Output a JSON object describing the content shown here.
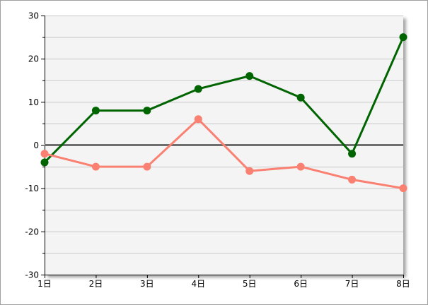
{
  "chart_data": {
    "type": "line",
    "categories": [
      "1日",
      "2日",
      "3日",
      "4日",
      "5日",
      "6日",
      "7日",
      "8日"
    ],
    "series": [
      {
        "color": "#006400",
        "values": [
          -4,
          8,
          8,
          13,
          16,
          11,
          -2,
          25
        ]
      },
      {
        "color": "#FA8072",
        "values": [
          -2,
          -5,
          -5,
          6,
          -6,
          -5,
          -8,
          -10
        ]
      }
    ],
    "ylim": [
      -30,
      30
    ],
    "yticks": [
      "30",
      "20",
      "10",
      "0",
      "-10",
      "-20",
      "-30"
    ],
    "title": "",
    "xlabel": "",
    "ylabel": "",
    "grid": true,
    "zero_line": true,
    "plot_background": "#F4F4F4"
  }
}
